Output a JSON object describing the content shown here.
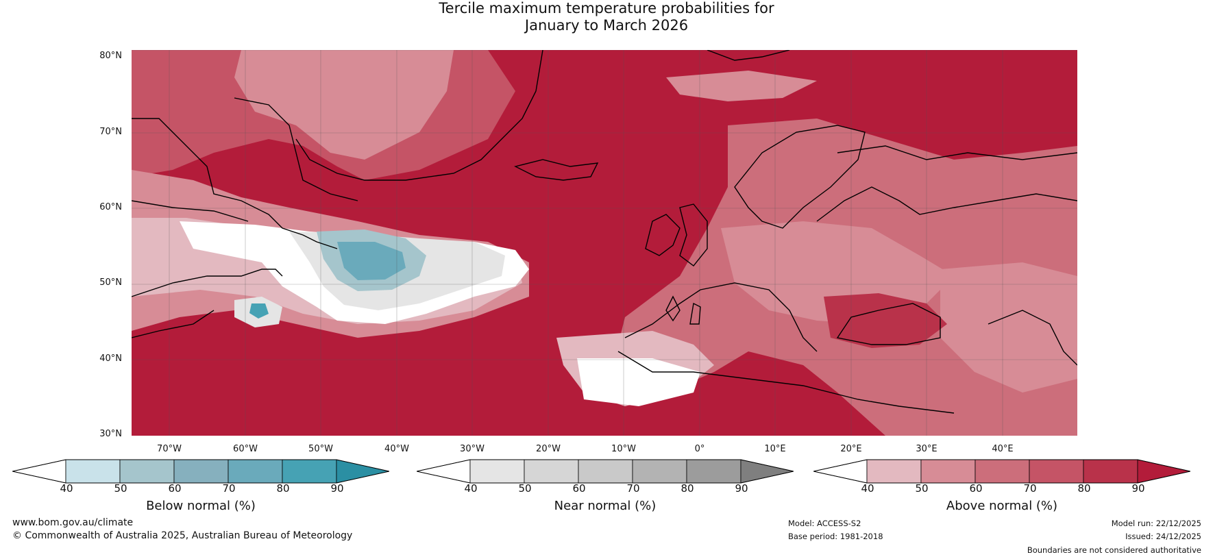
{
  "title": {
    "line1": "Tercile maximum temperature probabilities for",
    "line2": "January to March 2026"
  },
  "map": {
    "lat_labels": [
      "80°N",
      "70°N",
      "60°N",
      "50°N",
      "40°N",
      "30°N"
    ],
    "lon_labels": [
      "70°W",
      "60°W",
      "50°W",
      "40°W",
      "30°W",
      "20°W",
      "10°W",
      "0°",
      "10°E",
      "20°E",
      "30°E",
      "40°E"
    ],
    "ocean_color": "#b31c3a"
  },
  "legends": [
    {
      "name": "below",
      "title": "Below normal (%)",
      "ticks": [
        "40",
        "50",
        "60",
        "70",
        "80",
        "90"
      ],
      "colors": [
        "#ffffff",
        "#c9e2ea",
        "#a5c5cc",
        "#86b0be",
        "#6aaabb",
        "#46a2b4",
        "#2b8fa3"
      ]
    },
    {
      "name": "near",
      "title": "Near normal (%)",
      "ticks": [
        "40",
        "50",
        "60",
        "70",
        "80",
        "90"
      ],
      "colors": [
        "#ffffff",
        "#e5e5e5",
        "#d6d6d6",
        "#c9c9c9",
        "#b3b3b3",
        "#9c9c9c",
        "#7f7f7f"
      ]
    },
    {
      "name": "above",
      "title": "Above normal (%)",
      "ticks": [
        "40",
        "50",
        "60",
        "70",
        "80",
        "90"
      ],
      "colors": [
        "#ffffff",
        "#e3b9c0",
        "#d78c96",
        "#cc6e7b",
        "#c55466",
        "#b9324a",
        "#b31c3a"
      ]
    }
  ],
  "footer": {
    "website": "www.bom.gov.au/climate",
    "copyright": "© Commonwealth of Australia 2025, Australian Bureau of Meteorology",
    "model": "Model: ACCESS-S2",
    "base_period": "Base period: 1981-2018",
    "model_run": "Model run: 22/12/2025",
    "issued": "Issued: 24/12/2025",
    "disclaimer": "Boundaries are not considered authoritative"
  }
}
